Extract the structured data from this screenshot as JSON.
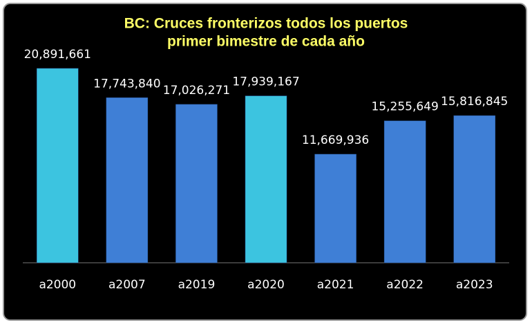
{
  "chart_data": {
    "type": "bar",
    "title": "BC: Cruces fronterizos todos los puertos",
    "subtitle": "primer bimestre de cada año",
    "categories": [
      "a2000",
      "a2007",
      "a2019",
      "a2020",
      "a2021",
      "a2022",
      "a2023"
    ],
    "values": [
      20891661,
      17743840,
      17026271,
      17939167,
      11669936,
      15255649,
      15816845
    ],
    "value_labels": [
      "20,891,661",
      "17,743,840",
      "17,026,271",
      "17,939,167",
      "11,669,936",
      "15,255,649",
      "15,816,845"
    ],
    "colors": [
      "#3cc4e0",
      "#3f7fd6",
      "#3f7fd6",
      "#3cc4e0",
      "#3f7fd6",
      "#3f7fd6",
      "#3f7fd6"
    ],
    "ylim": [
      0,
      22000000
    ]
  }
}
